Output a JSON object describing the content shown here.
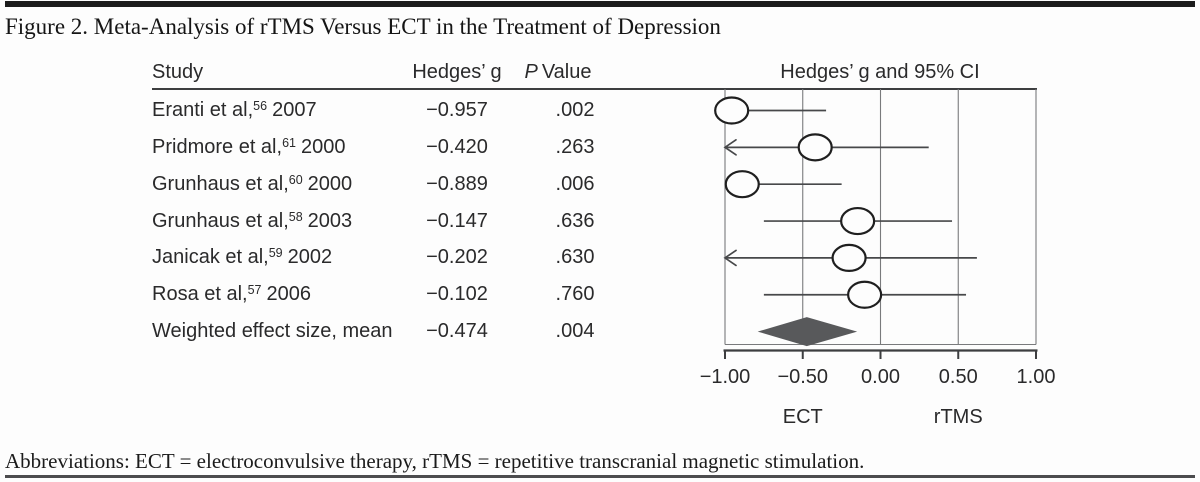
{
  "figure": {
    "title": "Figure 2. Meta-Analysis of rTMS Versus ECT in the Treatment of Depression"
  },
  "table": {
    "headers": {
      "study": "Study",
      "hedges_g": "Hedges’ g",
      "p_italic": "P",
      "p_rest": "Value",
      "ci": "Hedges’ g and 95% CI"
    }
  },
  "chart_data": {
    "type": "forest",
    "title": "Hedges’ g and 95% CI",
    "xlim": [
      -1.0,
      1.0
    ],
    "x_ticks": [
      -1.0,
      -0.5,
      0.0,
      0.5,
      1.0
    ],
    "x_tick_labels": [
      "−1.00",
      "−0.50",
      "0.00",
      "0.50",
      "1.00"
    ],
    "axis_group_labels": [
      {
        "label": "ECT",
        "x": -0.5
      },
      {
        "label": "rTMS",
        "x": 0.5
      }
    ],
    "grid": true,
    "studies": [
      {
        "study": "Eranti et al,",
        "ref": "56",
        "year": "2007",
        "hedges_g": "−0.957",
        "p_value": ".002",
        "point": -0.957,
        "ci_lower": -1.0,
        "ci_upper": -0.35,
        "arrow_left": false
      },
      {
        "study": "Pridmore et al,",
        "ref": "61",
        "year": "2000",
        "hedges_g": "−0.420",
        "p_value": ".263",
        "point": -0.42,
        "ci_lower": -1.0,
        "ci_upper": 0.31,
        "arrow_left": true
      },
      {
        "study": "Grunhaus et al,",
        "ref": "60",
        "year": "2000",
        "hedges_g": "−0.889",
        "p_value": ".006",
        "point": -0.889,
        "ci_lower": -1.0,
        "ci_upper": -0.25,
        "arrow_left": false
      },
      {
        "study": "Grunhaus et al,",
        "ref": "58",
        "year": "2003",
        "hedges_g": "−0.147",
        "p_value": ".636",
        "point": -0.147,
        "ci_lower": -0.75,
        "ci_upper": 0.46,
        "arrow_left": false
      },
      {
        "study": "Janicak et al,",
        "ref": "59",
        "year": "2002",
        "hedges_g": "−0.202",
        "p_value": ".630",
        "point": -0.202,
        "ci_lower": -1.0,
        "ci_upper": 0.62,
        "arrow_left": true
      },
      {
        "study": "Rosa et al,",
        "ref": "57",
        "year": "2006",
        "hedges_g": "−0.102",
        "p_value": ".760",
        "point": -0.102,
        "ci_lower": -0.75,
        "ci_upper": 0.55,
        "arrow_left": false
      }
    ],
    "summary": {
      "study": "Weighted effect size, mean",
      "hedges_g": "−0.474",
      "p_value": ".004",
      "point": -0.474,
      "diamond_lower": -0.79,
      "diamond_upper": -0.15
    }
  },
  "footer": {
    "abbreviations": "Abbreviations: ECT = electroconvulsive therapy, rTMS = repetitive transcranial magnetic stimulation."
  },
  "colors": {
    "top_rule": "#1c1c1c",
    "grid_line": "#797a7c",
    "ci_line": "#47484a",
    "circle_stroke": "#1f1f1f",
    "circle_fill": "#fdfdfd",
    "diamond_fill": "#58595b",
    "axis_line": "#3d3e40"
  }
}
